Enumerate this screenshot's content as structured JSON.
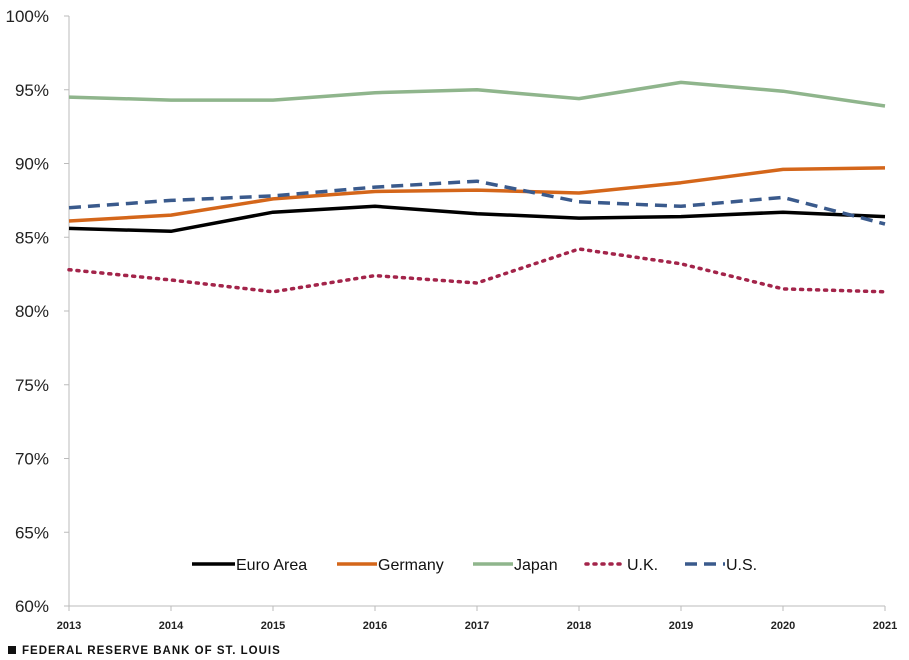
{
  "chart_data": {
    "type": "line",
    "title": "",
    "xlabel": "",
    "ylabel": "",
    "x": [
      "2013",
      "2014",
      "2015",
      "2016",
      "2017",
      "2018",
      "2019",
      "2020",
      "2021"
    ],
    "ylim": [
      60,
      100
    ],
    "yticks": [
      "60%",
      "65%",
      "70%",
      "75%",
      "80%",
      "85%",
      "90%",
      "95%",
      "100%"
    ],
    "ytick_values": [
      60,
      65,
      70,
      75,
      80,
      85,
      90,
      95,
      100
    ],
    "grid": false,
    "legend_position": "bottom-center",
    "series": [
      {
        "name": "Euro Area",
        "color": "#000000",
        "style": "solid",
        "values": [
          85.6,
          85.4,
          86.7,
          87.1,
          86.6,
          86.3,
          86.4,
          86.7,
          86.4
        ]
      },
      {
        "name": "Germany",
        "color": "#d4661a",
        "style": "solid",
        "values": [
          86.1,
          86.5,
          87.6,
          88.1,
          88.2,
          88.0,
          88.7,
          89.6,
          89.7
        ]
      },
      {
        "name": "Japan",
        "color": "#8fb58c",
        "style": "solid",
        "values": [
          94.5,
          94.3,
          94.3,
          94.8,
          95.0,
          94.4,
          95.5,
          94.9,
          93.9
        ]
      },
      {
        "name": "U.K.",
        "color": "#a3244a",
        "style": "dotted",
        "values": [
          82.8,
          82.1,
          81.3,
          82.4,
          81.9,
          84.2,
          83.2,
          81.5,
          81.3
        ]
      },
      {
        "name": "U.S.",
        "color": "#3a5a8c",
        "style": "dashed",
        "values": [
          87.0,
          87.5,
          87.8,
          88.4,
          88.8,
          87.4,
          87.1,
          87.7,
          85.9
        ]
      }
    ]
  },
  "footer": {
    "source": "FEDERAL RESERVE BANK OF ST. LOUIS"
  }
}
